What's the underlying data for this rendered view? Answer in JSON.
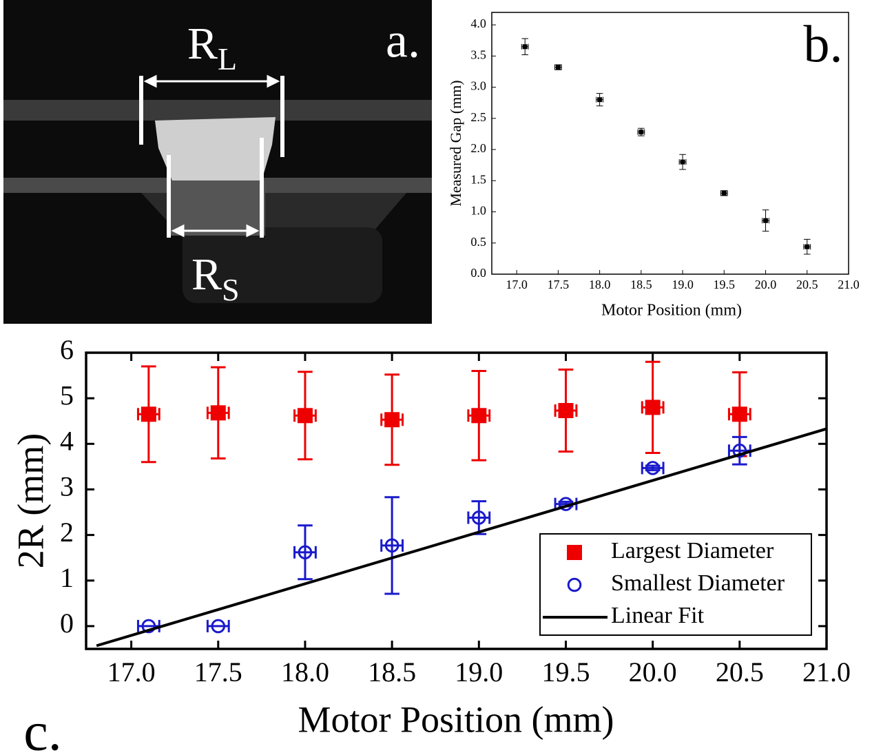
{
  "photo": {
    "panel_label": "a.",
    "annotations": [
      {
        "text": "R",
        "subscript": "L"
      },
      {
        "text": "R",
        "subscript": "S"
      }
    ]
  },
  "chart_data": [
    {
      "type": "scatter",
      "panel_label": "b.",
      "x_label": "Motor Position (mm)",
      "y_label": "Measured Gap (mm)",
      "x": [
        17.1,
        17.5,
        18.0,
        18.5,
        19.0,
        19.5,
        20.0,
        20.5
      ],
      "values": [
        3.65,
        3.32,
        2.8,
        2.28,
        1.8,
        1.3,
        0.86,
        0.44
      ],
      "errors": [
        0.13,
        0.04,
        0.1,
        0.06,
        0.12,
        0.04,
        0.17,
        0.12
      ],
      "color": "#000000",
      "marker": "square",
      "xlim": [
        16.7,
        21.0
      ],
      "xticks": [
        {
          "value": 17,
          "label": "17.0"
        },
        17.5,
        {
          "value": 18,
          "label": "18.0"
        },
        18.5,
        {
          "value": 19,
          "label": "19.0"
        },
        19.5,
        {
          "value": 20,
          "label": "20.0"
        },
        20.5,
        {
          "value": 21,
          "label": "21.0"
        }
      ],
      "ylim": [
        0,
        4.2
      ],
      "yticks": [
        {
          "value": 0,
          "label": "0.0"
        },
        0.5,
        {
          "value": 1,
          "label": "1.0"
        },
        1.5,
        {
          "value": 2,
          "label": "2.0"
        },
        2.5,
        {
          "value": 3,
          "label": "3.0"
        },
        3.5,
        {
          "value": 4,
          "label": "4.0"
        }
      ]
    },
    {
      "type": "scatter",
      "panel_label": "c.",
      "x_label": "Motor Position (mm)",
      "y_label": "2R (mm)",
      "series": [
        {
          "name": "Largest Diameter",
          "type": "scatter",
          "marker": "square",
          "color": "#ee0000",
          "x": [
            17.1,
            17.5,
            18.0,
            18.5,
            19.0,
            19.5,
            20.0,
            20.5
          ],
          "values": [
            4.65,
            4.68,
            4.62,
            4.53,
            4.62,
            4.73,
            4.8,
            4.65
          ],
          "errors": [
            1.05,
            1.0,
            0.96,
            0.99,
            0.98,
            0.9,
            1.0,
            0.92
          ]
        },
        {
          "name": "Smallest Diameter",
          "type": "scatter",
          "marker": "circle",
          "color": "#1a1acc",
          "x": [
            17.1,
            17.5,
            18.0,
            18.5,
            19.0,
            19.5,
            20.0,
            20.5
          ],
          "values": [
            0,
            0,
            1.62,
            1.77,
            2.38,
            2.68,
            3.47,
            3.85
          ],
          "errors": [
            0,
            0,
            0.59,
            1.06,
            0.36,
            0.05,
            0.05,
            0.3
          ]
        },
        {
          "name": "Linear Fit",
          "type": "line",
          "color": "#000000",
          "x": [
            16.8,
            21.0
          ],
          "values": [
            -0.43,
            4.33
          ]
        }
      ],
      "legend": "lower right",
      "xlim": [
        16.74,
        21.0
      ],
      "xticks": [
        {
          "value": 17,
          "label": "17.0"
        },
        17.5,
        {
          "value": 18,
          "label": "18.0"
        },
        18.5,
        {
          "value": 19,
          "label": "19.0"
        },
        19.5,
        {
          "value": 20,
          "label": "20.0"
        },
        20.5,
        {
          "value": 21,
          "label": "21.0"
        }
      ],
      "ylim": [
        -0.5,
        6
      ],
      "yticks": [
        0,
        1,
        2,
        3,
        4,
        5,
        6
      ]
    }
  ]
}
